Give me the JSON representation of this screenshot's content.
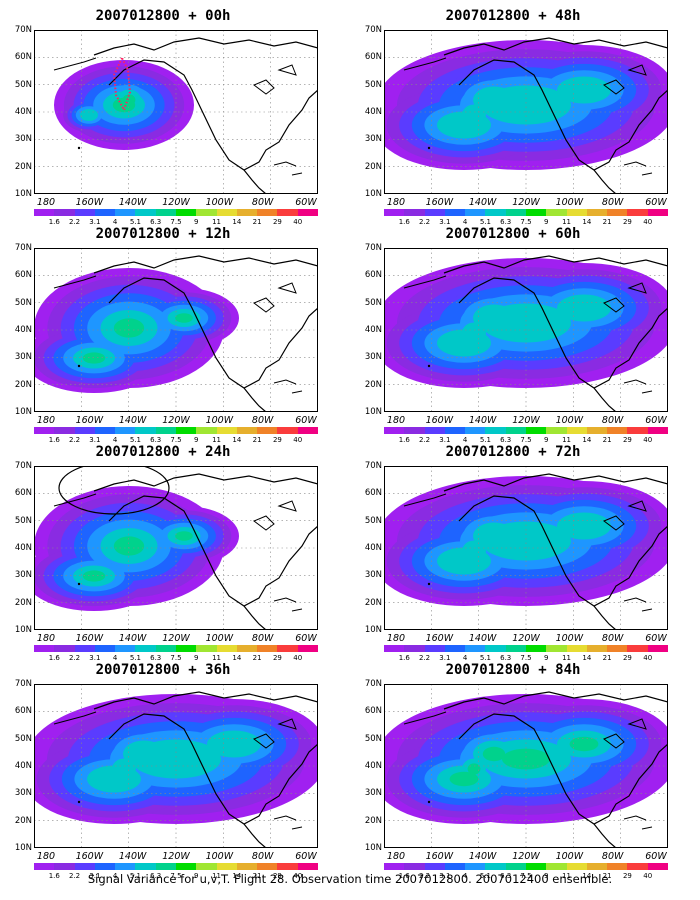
{
  "figure": {
    "footer": "Signal Variance for u,v,T. Flight 28. Observation time 2007012800. 2007012400 ensemble."
  },
  "axes": {
    "lat_labels": [
      "70N",
      "60N",
      "50N",
      "40N",
      "30N",
      "20N",
      "10N"
    ],
    "lon_labels": [
      "180",
      "160W",
      "140W",
      "120W",
      "100W",
      "80W",
      "60W"
    ]
  },
  "colorbar": {
    "labels": [
      "1.6",
      "2.2",
      "3.1",
      "4",
      "5.1",
      "6.3",
      "7.5",
      "9",
      "11",
      "14",
      "21",
      "29",
      "40"
    ],
    "colors": [
      "#a020f0",
      "#8a2be2",
      "#5a3cff",
      "#1e64ff",
      "#1e96ff",
      "#00c8c8",
      "#00d28c",
      "#00dc00",
      "#a0e632",
      "#e6dc32",
      "#e6af2d",
      "#f08228",
      "#fa3c3c",
      "#f00082"
    ]
  },
  "panels": [
    {
      "title": "2007012800 + 00h",
      "max_level": 6,
      "coverage": "small",
      "flight_track": "dotted-red",
      "circle": false
    },
    {
      "title": "2007012800 + 48h",
      "max_level": 5,
      "coverage": "wide",
      "flight_track": "none",
      "circle": false
    },
    {
      "title": "2007012800 + 12h",
      "max_level": 6,
      "coverage": "medium",
      "flight_track": "none",
      "circle": false
    },
    {
      "title": "2007012800 + 60h",
      "max_level": 5,
      "coverage": "wide",
      "flight_track": "none",
      "circle": false
    },
    {
      "title": "2007012800 + 24h",
      "max_level": 6,
      "coverage": "medium",
      "flight_track": "none",
      "circle": true
    },
    {
      "title": "2007012800 + 72h",
      "max_level": 5,
      "coverage": "wide",
      "flight_track": "none",
      "circle": false
    },
    {
      "title": "2007012800 + 36h",
      "max_level": 5,
      "coverage": "wide",
      "flight_track": "none",
      "circle": false
    },
    {
      "title": "2007012800 + 84h",
      "max_level": 7,
      "coverage": "wide",
      "flight_track": "none",
      "circle": false
    }
  ]
}
